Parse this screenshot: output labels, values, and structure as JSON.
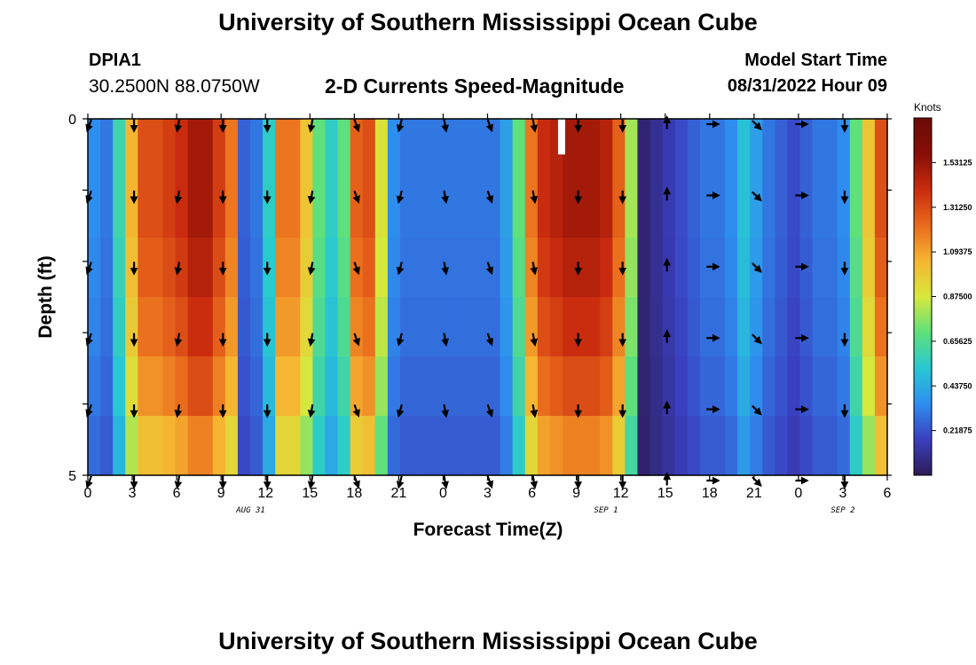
{
  "header": {
    "title": "University of Southern Mississippi Ocean Cube",
    "station": "DPIA1",
    "coordinates": "30.2500N  88.0750W",
    "subtitle": "2-D Currents Speed-Magnitude",
    "model_start_label": "Model Start Time",
    "model_start_value": "08/31/2022 Hour 09"
  },
  "footer": {
    "title": "University of Southern Mississippi Ocean Cube"
  },
  "chart_data": {
    "type": "heatmap",
    "title": "2-D Currents Speed-Magnitude",
    "xlabel": "Forecast Time(Z)",
    "ylabel": "Depth (ft)",
    "ylim": [
      0,
      5
    ],
    "y_ticks": [
      "0",
      "5"
    ],
    "x_tick_labels": [
      "0",
      "3",
      "6",
      "9",
      "12",
      "15",
      "18",
      "21",
      "0",
      "3",
      "6",
      "9",
      "12",
      "15",
      "18",
      "21",
      "0",
      "3",
      "6"
    ],
    "date_labels": [
      {
        "label": "AUG 31",
        "at_hour": 11
      },
      {
        "label": "SEP 1",
        "at_hour": 35
      },
      {
        "label": "SEP 2",
        "at_hour": 51
      }
    ],
    "x_hours": [
      0,
      3,
      6,
      9,
      12,
      15,
      18,
      21,
      24,
      27,
      30,
      33,
      36,
      39,
      42,
      45,
      48,
      51,
      54
    ],
    "speed_knots_by_hour": [
      0.35,
      0.3,
      0.6,
      1.05,
      1.3,
      1.3,
      1.35,
      1.4,
      1.5,
      1.5,
      1.35,
      1.2,
      0.25,
      0.3,
      0.55,
      1.2,
      1.2,
      1.0,
      0.7,
      0.55,
      0.7,
      1.25,
      1.3,
      0.9,
      0.35,
      0.3,
      0.3,
      0.3,
      0.3,
      0.3,
      0.3,
      0.3,
      0.3,
      0.4,
      0.7,
      1.2,
      1.4,
      1.45,
      1.5,
      1.5,
      1.5,
      1.45,
      1.25,
      0.8,
      0.05,
      0.1,
      0.15,
      0.2,
      0.25,
      0.3,
      0.3,
      0.35,
      0.5,
      0.4,
      0.3,
      0.25,
      0.2,
      0.25,
      0.3,
      0.3,
      0.35,
      0.7,
      1.0,
      1.3
    ],
    "depth_profile_factor": [
      1.0,
      1.0,
      0.97,
      0.93,
      0.87,
      0.78
    ],
    "vector_hours": [
      0,
      3,
      6,
      9,
      12,
      15,
      18,
      21,
      24,
      27,
      30,
      33,
      36,
      39,
      42,
      45,
      48,
      51
    ],
    "vector_depths_ft": [
      0,
      1,
      2,
      3,
      4,
      5
    ],
    "vector_directions_deg": [
      200,
      180,
      190,
      180,
      180,
      190,
      160,
      195,
      170,
      160,
      170,
      180,
      180,
      0,
      90,
      135,
      90,
      180
    ],
    "missing_marker": {
      "hour": 32,
      "depth_ft": [
        0,
        0.5
      ]
    },
    "colorbar": {
      "label": "Knots",
      "range": [
        0,
        1.75
      ],
      "tick_values": [
        1.53125,
        1.3125,
        1.09375,
        0.875,
        0.65625,
        0.4375,
        0.21875
      ],
      "tick_labels": [
        "1.53125",
        "1.31250",
        "1.09375",
        "0.87500",
        "0.65625",
        "0.43750",
        "0.21875"
      ],
      "palette": [
        "#2d1b54",
        "#3a3fc0",
        "#2e8ef0",
        "#27c9d2",
        "#5ee07a",
        "#d8e83c",
        "#f6b531",
        "#ea6a1c",
        "#c92b0e",
        "#870e06",
        "#6b0a05"
      ]
    }
  }
}
